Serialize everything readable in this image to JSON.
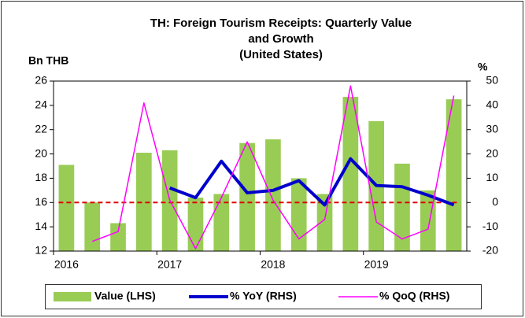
{
  "chart_data": {
    "type": "bar_line",
    "title": [
      "TH: Foreign Tourism Receipts: Quarterly Value",
      "and Growth"
    ],
    "subtitle": "(United States)",
    "ylabel": "Bn THB",
    "y2label": "%",
    "categories": [
      "2016",
      null,
      null,
      null,
      "2017",
      null,
      null,
      null,
      "2018",
      null,
      null,
      null,
      "2019",
      null,
      null,
      null
    ],
    "series": [
      {
        "name": "Value (LHS)",
        "type": "bar",
        "color": "#99cc55",
        "axis": "y",
        "values": [
          19.1,
          16.0,
          14.3,
          20.1,
          20.3,
          16.4,
          16.7,
          20.9,
          21.2,
          18.0,
          16.7,
          24.7,
          22.7,
          19.2,
          17.0,
          24.5
        ]
      },
      {
        "name": "% YoY (RHS)",
        "type": "line",
        "color": "#0000cc",
        "axis": "y2",
        "values": [
          null,
          null,
          null,
          null,
          6,
          2,
          17,
          4,
          5,
          9,
          -1,
          18,
          7,
          6.5,
          3,
          -1
        ]
      },
      {
        "name": "% QoQ (RHS)",
        "type": "line",
        "color": "#ff00ff",
        "axis": "y2",
        "values": [
          null,
          -16,
          -12,
          41,
          1,
          -19,
          2,
          25,
          1,
          -15,
          -7,
          48,
          -8,
          -15,
          -11,
          44
        ]
      }
    ],
    "reference_line": {
      "axis": "y2",
      "value": 0,
      "color": "#dd0000"
    },
    "ylim": [
      12,
      26
    ],
    "yticks": [
      12,
      14,
      16,
      18,
      20,
      22,
      24,
      26
    ],
    "y2lim": [
      -20,
      50
    ],
    "y2ticks": [
      -20,
      -10,
      0,
      10,
      20,
      30,
      40,
      50
    ],
    "legend": "bottom"
  }
}
